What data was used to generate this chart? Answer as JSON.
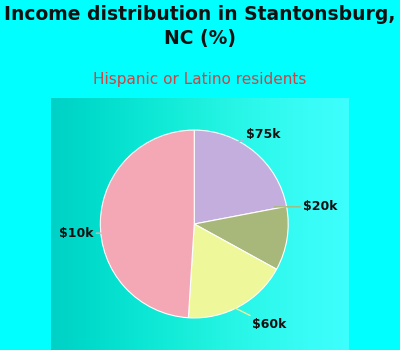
{
  "title": "Income distribution in Stantonsburg,\nNC (%)",
  "subtitle": "Hispanic or Latino residents",
  "title_color": "#111111",
  "subtitle_color": "#cc4444",
  "background_color": "#00ffff",
  "chart_bg_gradient": true,
  "slices": [
    {
      "label": "$75k",
      "value": 22,
      "color": "#c4aedd"
    },
    {
      "label": "$20k",
      "value": 11,
      "color": "#a8b87a"
    },
    {
      "label": "$60k",
      "value": 18,
      "color": "#eef799"
    },
    {
      "label": "$10k",
      "value": 49,
      "color": "#f4a8b5"
    }
  ],
  "startangle": 90,
  "label_fontsize": 9,
  "title_fontsize": 13.5,
  "subtitle_fontsize": 11
}
